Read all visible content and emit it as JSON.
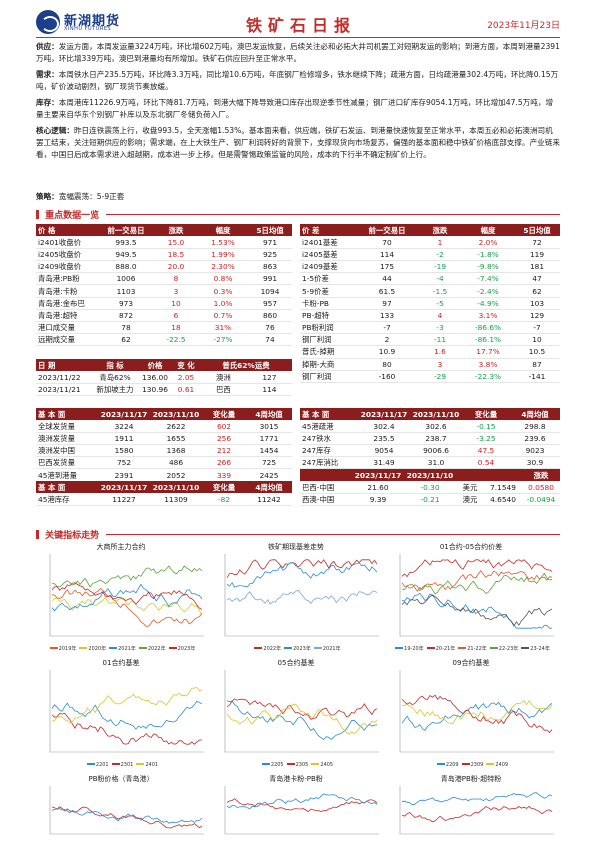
{
  "header": {
    "logo_cn": "新湖期货",
    "logo_en": "XINHU FUTURES",
    "title": "铁矿石日报",
    "date": "2023年11月23日"
  },
  "paragraphs": {
    "supply_label": "供应：",
    "supply_text": "发运方面，本周发运量3224万吨，环比增602万吨，澳巴发运恢复，后续关注必和必拓大井司机罢工对短期发运的影响；到港方面，本周到港量2391万吨，环比增339万吨，澳巴到港量均有所增加。铁矿石供应回升至正常水平。",
    "demand_label": "需求：",
    "demand_text": "本周铁水日产235.5万吨，环比降3.3万吨，同比增10.6万吨，年底钢厂检修增多，铁水继续下降；疏港方面，日均疏港量302.4万吨，环比降0.15万吨，矿价波动剧烈，钢厂现货节奏放缓。",
    "stock_label": "库存：",
    "stock_text": "本周港库11226.9万吨，环比下降81.7万吨，到港大幅下降导致港口库存出现逆季节性减量；钢厂进口矿库存9054.1万吨，环比增加47.5万吨，增量主要来自华东个别钢厂补库以及东北钢厂冬储负荷入厂。",
    "logic_label": "核心逻辑：",
    "logic_text": "昨日连铁震荡上行，收盘993.5，全天涨幅1.53%。基本面来看，供应端，铁矿石发运、到港量快速恢复至正常水平，本周五必和必拓澳洲司机罢工结束，关注短期供应的影响；需求端，在上大铁生产、钢厂利润转好的背景下，支撑现货向市场复苏，偏强的基本面和稳中铁矿价格底部支撑。产业链来看，中国日后成本需求进入超越期，成本进一步上移。但是需警惕政策监管的风险，成本的下行半不确定制矿价上行。",
    "strategy_label": "策略：",
    "strategy_text": "宽幅震荡：5-9正套"
  },
  "section_data": "重点数据一览",
  "section_charts": "关键指标走势",
  "price_table_left": {
    "headers": [
      "价 格",
      "前一交易日",
      "涨跌",
      "幅度",
      "5日均值"
    ],
    "rows": [
      [
        "i2401收盘价",
        "993.5",
        "15.0",
        "1.53%",
        "971"
      ],
      [
        "i2405收盘价",
        "949.5",
        "18.5",
        "1.99%",
        "925"
      ],
      [
        "i2409收盘价",
        "888.0",
        "20.0",
        "2.30%",
        "863"
      ],
      [
        "青岛港:PB粉",
        "1006",
        "8",
        "0.8%",
        "991"
      ],
      [
        "青岛港:卡粉",
        "1103",
        "3",
        "0.3%",
        "1094"
      ],
      [
        "青岛港:金布巴",
        "973",
        "10",
        "1.0%",
        "957"
      ],
      [
        "青岛港:超特",
        "872",
        "6",
        "0.7%",
        "860"
      ],
      [
        "港口成交量",
        "78",
        "18",
        "31%",
        "76"
      ],
      [
        "远期成交量",
        "62",
        "-22.5",
        "-27%",
        "74"
      ]
    ],
    "colors": [
      "r",
      "r",
      "r",
      "r",
      "r",
      "r",
      "r",
      "r",
      "g"
    ]
  },
  "price_table_right": {
    "headers": [
      "价 差",
      "前一交易日",
      "涨跌",
      "幅度",
      "5日均值"
    ],
    "rows": [
      [
        "i2401基差",
        "70",
        "1",
        "2.0%",
        "72"
      ],
      [
        "i2405基差",
        "114",
        "-2",
        "-1.8%",
        "119"
      ],
      [
        "i2409基差",
        "175",
        "-19",
        "-9.8%",
        "181"
      ],
      [
        "1-5价差",
        "44",
        "-4",
        "-7.4%",
        "47"
      ],
      [
        "5-9价差",
        "61.5",
        "-1.5",
        "-2.4%",
        "62"
      ],
      [
        "卡粉-PB",
        "97",
        "-5",
        "-4.9%",
        "103"
      ],
      [
        "PB-超特",
        "133",
        "4",
        "3.1%",
        "129"
      ],
      [
        "PB粉利润",
        "-7",
        "-3",
        "-86.6%",
        "-7"
      ],
      [
        "钢厂利润",
        "2",
        "-11",
        "-86.1%",
        "10"
      ],
      [
        "普氏-掉期",
        "10.9",
        "1.6",
        "17.7%",
        "10.5"
      ],
      [
        "掉期-大商",
        "80",
        "3",
        "3.8%",
        "87"
      ],
      [
        "钢厂利润",
        "-160",
        "-29",
        "-22.3%",
        "-141"
      ]
    ],
    "colors": [
      "r",
      "g",
      "g",
      "g",
      "g",
      "g",
      "r",
      "g",
      "g",
      "r",
      "r",
      "g"
    ]
  },
  "freight_table": {
    "headers": [
      "日 期",
      "指 标",
      "价格",
      "变 化",
      "普氏62%运费"
    ],
    "rows": [
      [
        "2023/11/22",
        "青岛62%",
        "136.00",
        "2.05",
        "澳洲",
        "127"
      ],
      [
        "2023/11/21",
        "新加坡主力",
        "130.96",
        "0.61",
        "巴西",
        "114"
      ]
    ]
  },
  "fund_table_left": {
    "headers": [
      "基 本 面",
      "2023/11/17",
      "2023/11/10",
      "变化量",
      "4周均值"
    ],
    "rows": [
      [
        "全球发货量",
        "3224",
        "2622",
        "602",
        "3015"
      ],
      [
        "澳洲发货量",
        "1911",
        "1655",
        "256",
        "1771"
      ],
      [
        "澳洲发中国",
        "1580",
        "1368",
        "212",
        "1454"
      ],
      [
        "巴西发货量",
        "752",
        "486",
        "266",
        "725"
      ],
      [
        "45港到港量",
        "2391",
        "2052",
        "339",
        "2425"
      ]
    ]
  },
  "fund_table_right": {
    "headers": [
      "基 本 面",
      "2023/11/17",
      "2023/11/10",
      "变化量",
      "4周均值"
    ],
    "rows": [
      [
        "45港疏港",
        "302.4",
        "302.6",
        "-0.15",
        "298.8"
      ],
      [
        "247铁水",
        "235.5",
        "238.7",
        "-3.25",
        "239.6"
      ],
      [
        "247库存",
        "9054",
        "9006.6",
        "47.5",
        "9023"
      ],
      [
        "247库消比",
        "31.49",
        "31.0",
        "0.54",
        "30.9"
      ]
    ],
    "colors": [
      "g",
      "g",
      "r",
      "r"
    ]
  },
  "fund_table_stock": {
    "headers": [
      "基 本 面",
      "2023/11/17",
      "2023/11/10",
      "变化量",
      "4周均值"
    ],
    "row": [
      "45港库存",
      "11227",
      "11309",
      "-82",
      "11242"
    ]
  },
  "ocean_table": {
    "headers": [
      "",
      "2023/11/17",
      "2023/11/10",
      "",
      "",
      "涨跌"
    ],
    "rows": [
      [
        "巴西-中国",
        "21.60",
        "-0.30",
        "美元",
        "7.1549",
        "0.0580"
      ],
      [
        "西澳-中国",
        "9.39",
        "-0.21",
        "澳元",
        "4.6540",
        "-0.0494"
      ]
    ]
  },
  "charts": [
    {
      "title": "大商所主力合约",
      "series": [
        "2019年",
        "2020年",
        "2021年",
        "2022年",
        "2023年"
      ],
      "colors": [
        "#e05a2b",
        "#d7c72a",
        "#2d8cd6",
        "#5aa53a",
        "#c62b2b"
      ]
    },
    {
      "title": "铁矿期现基差走势",
      "series": [
        "2022年",
        "2023年",
        "2021年"
      ],
      "colors": [
        "#c62b2b",
        "#2d8cd6",
        "#7aa6d6"
      ]
    },
    {
      "title": "01合约-05合约价差",
      "series": [
        "19-20年",
        "20-21年",
        "21-22年",
        "22-23年",
        "23-24年"
      ],
      "colors": [
        "#2d8cd6",
        "#c62b2b",
        "#e05a2b",
        "#5aa53a",
        "#555555"
      ]
    },
    {
      "title": "01合约基差",
      "series": [
        "2201",
        "2301",
        "2401"
      ],
      "colors": [
        "#2d8cd6",
        "#c62b2b",
        "#d7c72a"
      ]
    },
    {
      "title": "05合约基差",
      "series": [
        "2205",
        "2305",
        "2405"
      ],
      "colors": [
        "#2d8cd6",
        "#c62b2b",
        "#d7c72a"
      ]
    },
    {
      "title": "09合约基差",
      "series": [
        "2209",
        "2309",
        "2409"
      ],
      "colors": [
        "#2d8cd6",
        "#c62b2b",
        "#d7c72a"
      ]
    },
    {
      "title": "PB粉价格（青岛港）",
      "series": [],
      "colors": [
        "#c62b2b",
        "#2d8cd6"
      ]
    },
    {
      "title": "青岛港卡粉-PB粉",
      "series": [],
      "colors": [
        "#c62b2b",
        "#2d8cd6"
      ]
    },
    {
      "title": "青岛港PB粉-超特粉",
      "series": [],
      "colors": [
        "#c62b2b",
        "#2d8cd6"
      ]
    }
  ]
}
